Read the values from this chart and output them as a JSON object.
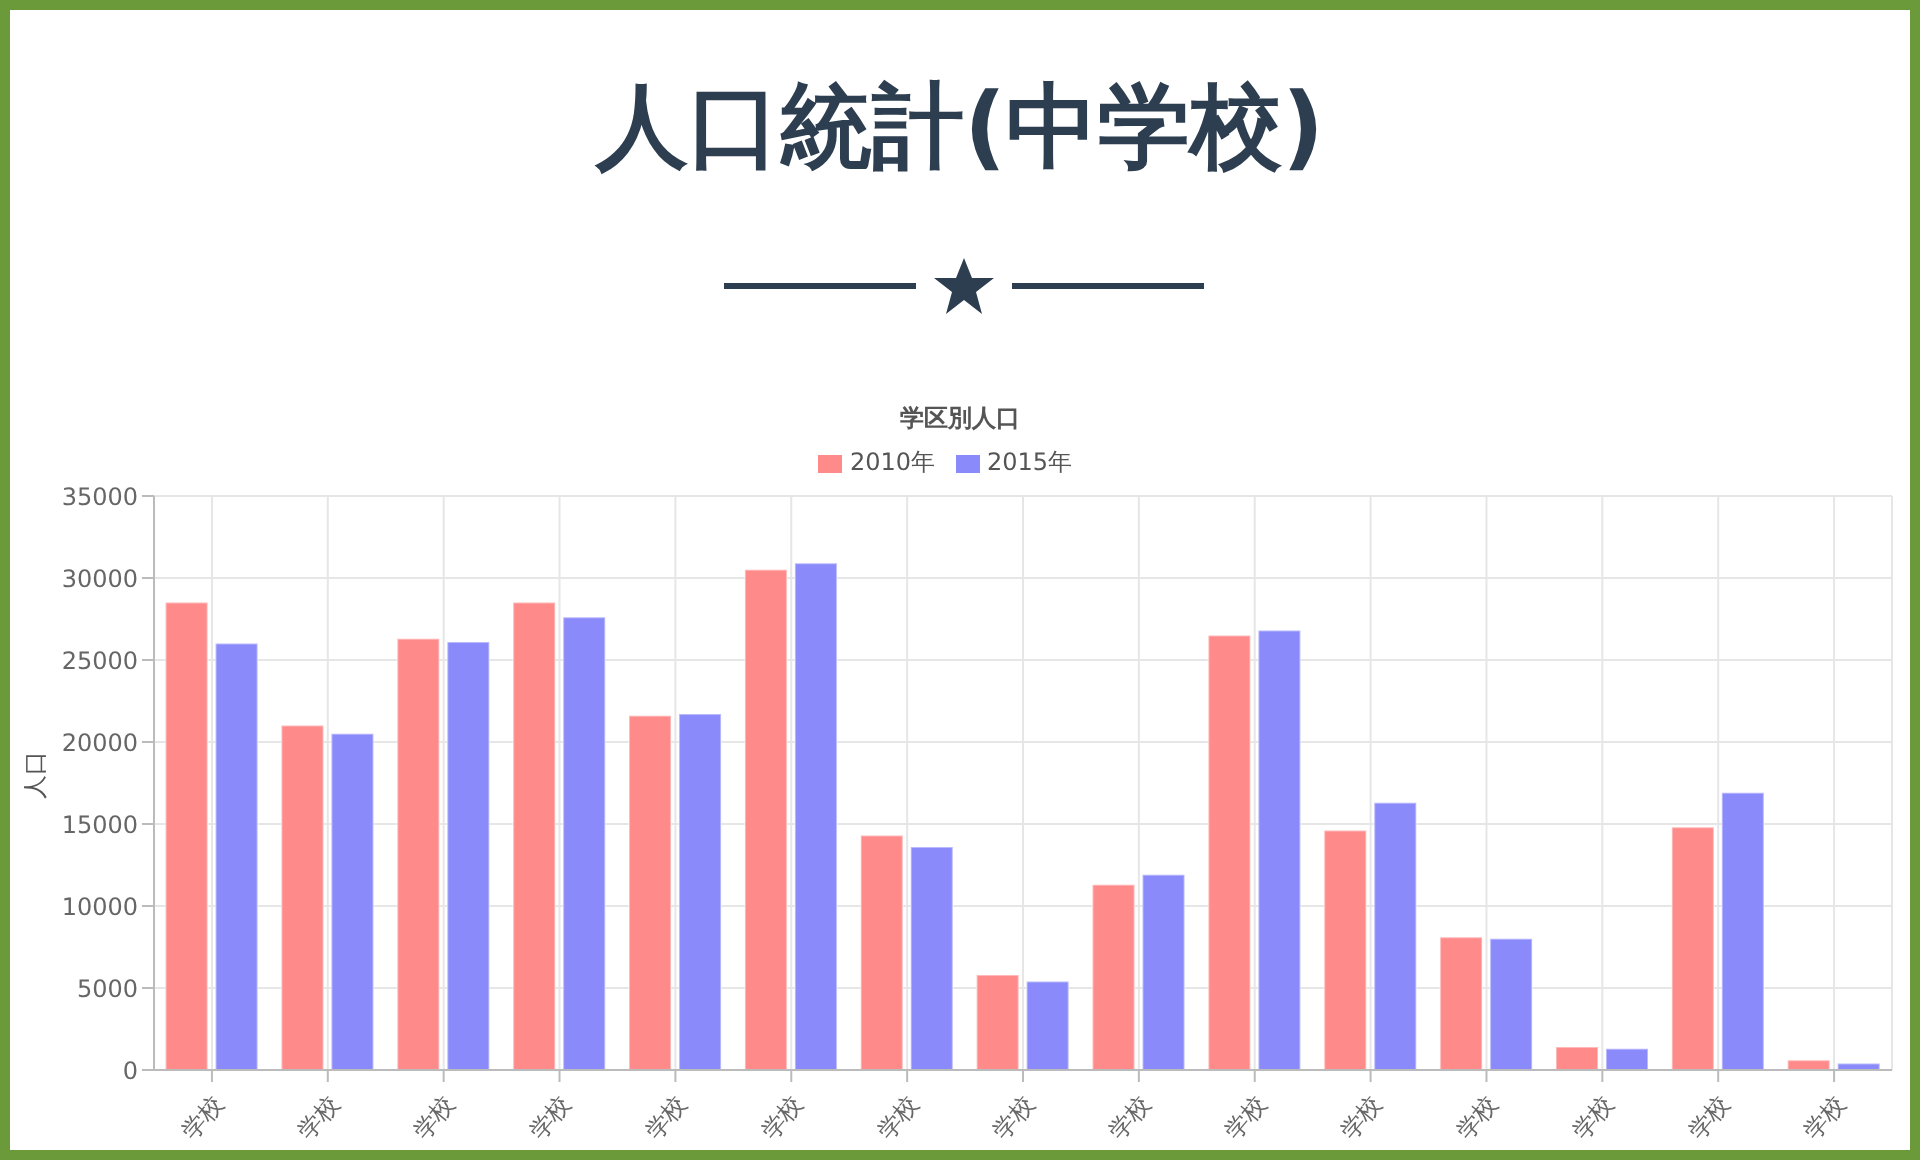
{
  "chart_data": {
    "type": "bar",
    "title": "人口統計(中学校)",
    "subtitle": "学区別人口",
    "ylabel": "人口",
    "categories": [
      "学校",
      "学校",
      "学校",
      "学校",
      "学校",
      "学校",
      "学校",
      "学校",
      "学校",
      "学校",
      "学校",
      "学校",
      "学校",
      "学校",
      "学校"
    ],
    "series": [
      {
        "name": "2010年",
        "color": "#ff8a8a",
        "values": [
          28500,
          21000,
          26300,
          28500,
          21600,
          30500,
          14300,
          5800,
          11300,
          26500,
          14600,
          8100,
          1400,
          14800,
          600
        ]
      },
      {
        "name": "2015年",
        "color": "#8a8afa",
        "values": [
          26000,
          20500,
          26100,
          27600,
          21700,
          30900,
          13600,
          5400,
          11900,
          26800,
          16300,
          8000,
          1300,
          16900,
          400
        ]
      }
    ],
    "ylim": [
      0,
      35000
    ],
    "yticks": [
      0,
      5000,
      10000,
      15000,
      20000,
      25000,
      30000,
      35000
    ],
    "grid": true,
    "legend": "top"
  }
}
